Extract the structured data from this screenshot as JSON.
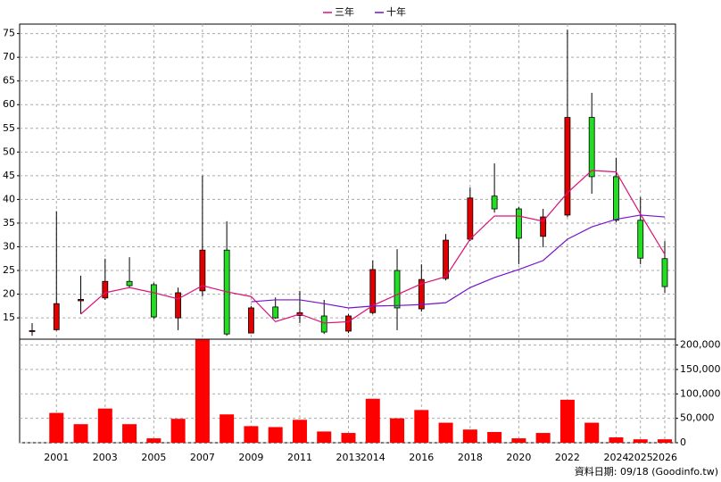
{
  "chart_data": {
    "type": "candlestick",
    "categories": [
      null,
      "2001",
      null,
      "2003",
      null,
      "2005",
      null,
      "2007",
      null,
      "2009",
      null,
      "2011",
      null,
      "2013",
      "2014",
      null,
      "2016",
      null,
      "2018",
      null,
      "2020",
      null,
      "2022",
      null,
      "2024",
      "2025",
      "2026"
    ],
    "open": [
      12.3,
      12.5,
      18.6,
      19.2,
      22.7,
      22.0,
      15.0,
      20.7,
      29.3,
      11.8,
      17.3,
      15.5,
      15.4,
      12.2,
      16.1,
      25.0,
      16.9,
      23.3,
      31.6,
      40.7,
      38.0,
      32.2,
      36.7,
      57.3,
      44.8,
      35.6,
      27.5
    ],
    "high": [
      13.9,
      37.5,
      23.9,
      27.5,
      27.8,
      22.4,
      21.4,
      45.0,
      35.4,
      17.5,
      19.3,
      20.7,
      18.8,
      15.8,
      27.1,
      29.5,
      26.3,
      32.7,
      42.5,
      47.6,
      38.4,
      38.0,
      75.8,
      62.5,
      48.8,
      40.5,
      31.2
    ],
    "low": [
      11.2,
      12.3,
      15.8,
      18.8,
      21.4,
      14.8,
      12.4,
      19.5,
      11.2,
      11.8,
      14.8,
      13.9,
      11.6,
      11.8,
      15.8,
      12.4,
      16.3,
      22.9,
      31.2,
      37.2,
      26.3,
      29.9,
      36.3,
      41.2,
      35.2,
      26.3,
      20.3
    ],
    "close": [
      12.3,
      18.0,
      18.9,
      22.7,
      21.8,
      15.2,
      20.3,
      29.3,
      11.6,
      17.1,
      15.0,
      16.1,
      12.0,
      15.4,
      25.2,
      17.1,
      23.1,
      31.4,
      40.3,
      38.0,
      31.8,
      36.3,
      57.3,
      44.8,
      35.6,
      27.6,
      21.6
    ],
    "up_color": "#e00000",
    "down_color": "#22dd22",
    "wick_color": "#000000",
    "series": [
      {
        "name": "三年",
        "color": "#dd1177",
        "values": [
          null,
          null,
          15.8,
          20.3,
          21.4,
          20.3,
          19.0,
          21.8,
          20.5,
          19.5,
          14.2,
          15.8,
          13.9,
          14.2,
          17.6,
          19.9,
          22.2,
          23.7,
          31.6,
          36.5,
          36.5,
          35.4,
          41.4,
          46.1,
          45.8,
          36.9,
          28.4
        ]
      },
      {
        "name": "十年",
        "color": "#7711cc",
        "values": [
          null,
          null,
          null,
          null,
          null,
          null,
          null,
          null,
          null,
          18.4,
          18.8,
          18.8,
          18.0,
          17.1,
          17.5,
          17.6,
          17.8,
          18.2,
          21.4,
          23.5,
          25.2,
          27.1,
          31.6,
          34.2,
          35.8,
          36.7,
          36.3
        ]
      }
    ],
    "volume": {
      "color": "#ff0000",
      "axis": "y2",
      "values": [
        null,
        61000,
        38000,
        70000,
        38000,
        9000,
        49000,
        211000,
        58000,
        34000,
        32000,
        47000,
        23000,
        20000,
        90000,
        50000,
        67000,
        41000,
        27000,
        22000,
        9000,
        20000,
        88000,
        41000,
        11000,
        7000,
        7000
      ]
    },
    "ylim": [
      10.5,
      77
    ],
    "yticks": [
      15,
      20,
      25,
      30,
      35,
      40,
      45,
      50,
      55,
      60,
      65,
      70,
      75
    ],
    "y2lim": [
      0,
      212000
    ],
    "y2ticks": [
      0,
      {
        "value": 50000,
        "label": "50,000"
      },
      {
        "value": 100000,
        "label": "100,000"
      },
      {
        "value": 150000,
        "label": "150,000"
      },
      {
        "value": 200000,
        "label": "200,000"
      }
    ],
    "grid": true,
    "footnote": "資料日期: 09/18 (Goodinfo.tw)"
  }
}
